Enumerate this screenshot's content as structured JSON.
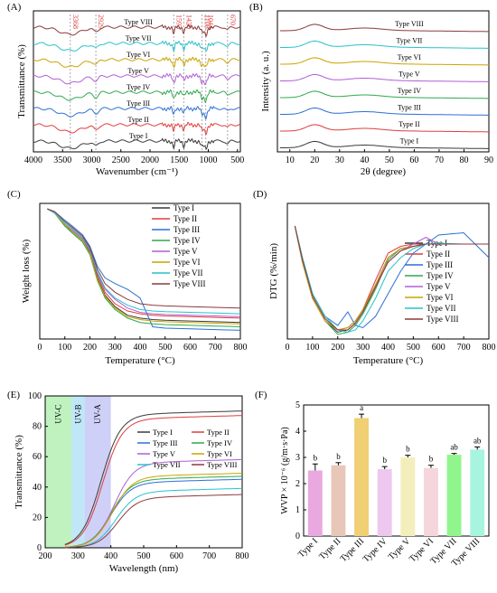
{
  "figure": {
    "panels": [
      "(A)",
      "(B)",
      "(C)",
      "(D)",
      "(E)",
      "(F)"
    ]
  },
  "colors": {
    "Type I": "#3a3a3a",
    "Type II": "#e03c3c",
    "Type III": "#2c6fd6",
    "Type IV": "#2fa84f",
    "Type V": "#b05fd6",
    "Type VI": "#c9a400",
    "Type VII": "#27c2c9",
    "Type VIII": "#8b3a3a",
    "band_uvc": "#bff2bf",
    "band_uvb": "#bfe7f7",
    "band_uva": "#cfd0f7",
    "annotation": "#e03c3c"
  },
  "chart_data": [
    {
      "panel": "(A)",
      "type": "line",
      "xlabel": "Wavenumber (cm⁻¹)",
      "ylabel": "Transmittance (%)",
      "xlim": [
        4000,
        450
      ],
      "xticks": [
        4000,
        3500,
        3000,
        2500,
        2000,
        1500,
        1000,
        500
      ],
      "annotations": [
        "3368",
        "2929",
        "1593",
        "1420",
        "1108",
        "1044",
        "670"
      ],
      "annotation_x": [
        3368,
        2929,
        1593,
        1420,
        1108,
        1044,
        670
      ],
      "series": [
        {
          "name": "Type I"
        },
        {
          "name": "Type II"
        },
        {
          "name": "Type III"
        },
        {
          "name": "Type IV"
        },
        {
          "name": "Type V"
        },
        {
          "name": "Type VI"
        },
        {
          "name": "Type VII"
        },
        {
          "name": "Type VIII"
        }
      ]
    },
    {
      "panel": "(B)",
      "type": "line",
      "xlabel": "2θ (degree)",
      "ylabel": "Intensity (a. u.)",
      "xlim": [
        5,
        90
      ],
      "xticks": [
        10,
        20,
        30,
        40,
        50,
        60,
        70,
        80,
        90
      ],
      "peak_2theta": 20,
      "series": [
        {
          "name": "Type I"
        },
        {
          "name": "Type II"
        },
        {
          "name": "Type III"
        },
        {
          "name": "Type IV"
        },
        {
          "name": "Type V"
        },
        {
          "name": "Type VI"
        },
        {
          "name": "Type VII"
        },
        {
          "name": "Type VIII"
        }
      ]
    },
    {
      "panel": "(C)",
      "type": "line",
      "xlabel": "Temperature (°C)",
      "ylabel": "Weight loss (%)",
      "xlim": [
        0,
        800
      ],
      "xticks": [
        0,
        100,
        200,
        300,
        400,
        500,
        600,
        700,
        800
      ],
      "x": [
        30,
        60,
        100,
        130,
        170,
        200,
        230,
        260,
        300,
        350,
        400,
        450,
        500,
        600,
        700,
        800
      ],
      "series": [
        {
          "name": "Type I",
          "values": [
            100,
            97,
            88,
            84,
            78,
            70,
            52,
            40,
            32,
            26,
            24,
            23,
            22.5,
            22,
            21.5,
            21
          ]
        },
        {
          "name": "Type II",
          "values": [
            100,
            97,
            89,
            85,
            79,
            71,
            54,
            42,
            34,
            29,
            27,
            26,
            25.5,
            25,
            24.5,
            24
          ]
        },
        {
          "name": "Type III",
          "values": [
            100,
            98,
            92,
            88,
            82,
            74,
            60,
            52,
            48,
            44,
            38,
            18,
            17,
            16.5,
            16,
            15.5
          ]
        },
        {
          "name": "Type IV",
          "values": [
            100,
            97,
            88,
            83,
            77,
            68,
            50,
            38,
            30,
            24,
            21,
            20,
            19.5,
            19,
            18.5,
            18
          ]
        },
        {
          "name": "Type V",
          "values": [
            100,
            97,
            89,
            85,
            79,
            71,
            55,
            44,
            37,
            31,
            28,
            27,
            26.5,
            26,
            25.5,
            25
          ]
        },
        {
          "name": "Type VI",
          "values": [
            100,
            97,
            89,
            84,
            78,
            69,
            51,
            39,
            31,
            25,
            23,
            22,
            21.5,
            21,
            20.5,
            20
          ]
        },
        {
          "name": "Type VII",
          "values": [
            100,
            97,
            90,
            86,
            80,
            72,
            56,
            45,
            38,
            33,
            30,
            29,
            28.5,
            28,
            27.5,
            27
          ]
        },
        {
          "name": "Type VIII",
          "values": [
            100,
            98,
            91,
            87,
            81,
            73,
            58,
            48,
            42,
            37,
            34,
            33,
            32.5,
            32,
            31.5,
            31
          ]
        }
      ]
    },
    {
      "panel": "(D)",
      "type": "line",
      "xlabel": "Temperature (°C)",
      "ylabel": "DTG (%/min)",
      "xlim": [
        0,
        800
      ],
      "xticks": [
        0,
        100,
        200,
        300,
        400,
        500,
        600,
        700,
        800
      ],
      "x": [
        30,
        60,
        100,
        150,
        200,
        240,
        270,
        300,
        350,
        400,
        450,
        500,
        550,
        600,
        700,
        800
      ],
      "series": [
        {
          "name": "Type I",
          "values": [
            1.0,
            0.2,
            -0.6,
            -1.1,
            -1.35,
            -1.3,
            -1.15,
            -0.9,
            -0.3,
            0.3,
            0.5,
            0.55,
            0.6,
            0.6,
            0.6,
            0.6
          ]
        },
        {
          "name": "Type II",
          "values": [
            1.0,
            0.2,
            -0.6,
            -1.1,
            -1.3,
            -1.25,
            -1.1,
            -0.85,
            -0.2,
            0.4,
            0.55,
            0.6,
            0.6,
            0.6,
            0.6,
            0.6
          ]
        },
        {
          "name": "Type III",
          "values": [
            1.0,
            0.3,
            -0.5,
            -1.0,
            -1.2,
            -0.9,
            -1.2,
            -1.25,
            -1.0,
            -0.5,
            0.0,
            0.4,
            0.6,
            0.8,
            0.85,
            0.3
          ]
        },
        {
          "name": "Type IV",
          "values": [
            1.0,
            0.2,
            -0.6,
            -1.1,
            -1.4,
            -1.35,
            -1.2,
            -0.95,
            -0.4,
            0.25,
            0.5,
            0.55,
            0.6,
            0.6,
            0.6,
            0.6
          ]
        },
        {
          "name": "Type V",
          "values": [
            1.0,
            0.2,
            -0.6,
            -1.1,
            -1.3,
            -1.25,
            -1.1,
            -0.85,
            -0.3,
            0.2,
            0.45,
            0.6,
            0.75,
            0.6,
            0.6,
            0.6
          ]
        },
        {
          "name": "Type VI",
          "values": [
            1.0,
            0.2,
            -0.6,
            -1.1,
            -1.3,
            -1.25,
            -1.1,
            -0.85,
            -0.3,
            0.3,
            0.5,
            0.55,
            0.6,
            0.6,
            0.6,
            0.6
          ]
        },
        {
          "name": "Type VII",
          "values": [
            1.0,
            0.3,
            -0.5,
            -1.0,
            -1.3,
            -1.35,
            -1.3,
            -1.1,
            -0.6,
            0.0,
            0.3,
            0.5,
            0.6,
            0.62,
            0.6,
            0.6
          ]
        },
        {
          "name": "Type VIII",
          "values": [
            1.0,
            0.25,
            -0.55,
            -1.05,
            -1.3,
            -1.3,
            -1.15,
            -0.9,
            -0.35,
            0.2,
            0.45,
            0.55,
            0.6,
            0.6,
            0.6,
            0.6
          ]
        }
      ]
    },
    {
      "panel": "(E)",
      "type": "line",
      "xlabel": "Wavelength (nm)",
      "ylabel": "Transmittance (%)",
      "xlim": [
        200,
        800
      ],
      "ylim": [
        0,
        100
      ],
      "xticks": [
        200,
        300,
        400,
        500,
        600,
        700,
        800
      ],
      "yticks": [
        0,
        20,
        40,
        60,
        80,
        100
      ],
      "bands": [
        {
          "label": "UV-C",
          "from": 200,
          "to": 280
        },
        {
          "label": "UV-B",
          "from": 280,
          "to": 320
        },
        {
          "label": "UV-A",
          "from": 320,
          "to": 400
        }
      ],
      "series": [
        {
          "name": "Type I",
          "plateau": 88,
          "mid": 330
        },
        {
          "name": "Type II",
          "plateau": 85,
          "mid": 335
        },
        {
          "name": "Type III",
          "plateau": 43,
          "mid": 360
        },
        {
          "name": "Type IV",
          "plateau": 45,
          "mid": 360
        },
        {
          "name": "Type V",
          "plateau": 56,
          "mid": 370
        },
        {
          "name": "Type VI",
          "plateau": 47,
          "mid": 365
        },
        {
          "name": "Type VII",
          "plateau": 37,
          "mid": 375
        },
        {
          "name": "Type VIII",
          "plateau": 33,
          "mid": 380
        }
      ]
    },
    {
      "panel": "(F)",
      "type": "bar",
      "ylabel": "WVP × 10⁻⁶ (g/m·s·Pa)",
      "ylim": [
        0,
        5
      ],
      "yticks": [
        0,
        1,
        2,
        3,
        4,
        5
      ],
      "categories": [
        "Type I",
        "Type II",
        "Type III",
        "Type IV",
        "Type V",
        "Type VI",
        "Type VII",
        "Type VIII"
      ],
      "values": [
        2.5,
        2.7,
        4.5,
        2.55,
        3.0,
        2.6,
        3.1,
        3.3
      ],
      "errors": [
        0.25,
        0.1,
        0.15,
        0.1,
        0.08,
        0.1,
        0.05,
        0.1
      ],
      "letters": [
        "b",
        "b",
        "a",
        "b",
        "b",
        "b",
        "ab",
        "ab"
      ],
      "bar_colors": [
        "#e9a8e0",
        "#e8c7b8",
        "#f1cf73",
        "#eec7ee",
        "#f3eebc",
        "#f5d6dc",
        "#8ff58c",
        "#a8f5df"
      ]
    }
  ]
}
